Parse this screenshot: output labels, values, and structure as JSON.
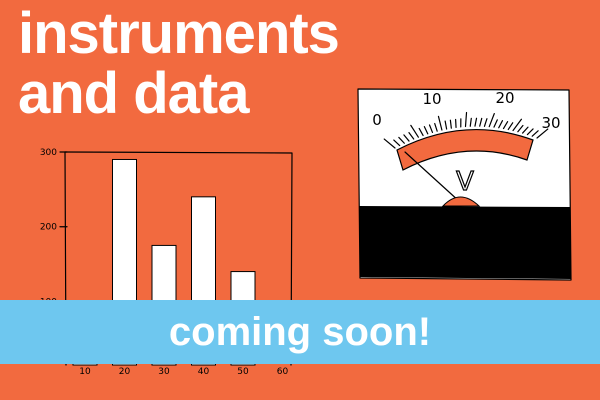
{
  "headline": {
    "line1": "instruments",
    "line2": "and data"
  },
  "banner": {
    "text": "coming soon!"
  },
  "meter": {
    "scale_labels": [
      "0",
      "10",
      "20",
      "30"
    ],
    "unit": "V",
    "needle_value": 0
  },
  "colors": {
    "background": "#f26a3f",
    "banner": "#6ec7ef",
    "text": "#ffffff",
    "meter_arc": "#f26a3f",
    "meter_panel": "#000000"
  },
  "chart_data": {
    "type": "bar",
    "title": "",
    "xlabel": "",
    "ylabel": "",
    "categories": [
      "10",
      "20",
      "30",
      "40",
      "50",
      "60"
    ],
    "values": [
      100,
      290,
      175,
      240,
      140,
      null
    ],
    "ylim": [
      100,
      300
    ],
    "yticks": [
      "100",
      "200",
      "300"
    ],
    "grid": false
  }
}
